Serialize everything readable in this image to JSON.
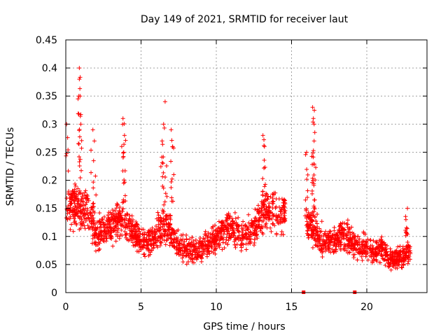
{
  "chart_data": {
    "type": "scatter",
    "title": "Day 149 of 2021, SRMTID for receiver laut",
    "xlabel": "GPS time / hours",
    "ylabel": "SRMTID / TECUs",
    "xlim": [
      0,
      24
    ],
    "ylim": [
      0,
      0.45
    ],
    "xticks": [
      0,
      5,
      10,
      15,
      20
    ],
    "xtick_labels": [
      "0",
      "5",
      "10",
      "15",
      "20"
    ],
    "yticks": [
      0,
      0.05,
      0.1,
      0.15,
      0.2,
      0.25,
      0.3,
      0.35,
      0.4,
      0.45
    ],
    "ytick_labels": [
      "0",
      "0.05",
      "0.1",
      "0.15",
      "0.2",
      "0.25",
      "0.3",
      "0.35",
      "0.4",
      "0.45"
    ],
    "grid": true,
    "marker": "+",
    "series_color": "#ff0000",
    "trend": [
      {
        "x": 0.0,
        "y": 0.15
      },
      {
        "x": 0.5,
        "y": 0.16
      },
      {
        "x": 1.0,
        "y": 0.14
      },
      {
        "x": 1.5,
        "y": 0.15
      },
      {
        "x": 2.0,
        "y": 0.1
      },
      {
        "x": 2.5,
        "y": 0.11
      },
      {
        "x": 3.0,
        "y": 0.12
      },
      {
        "x": 3.5,
        "y": 0.13
      },
      {
        "x": 4.0,
        "y": 0.12
      },
      {
        "x": 4.5,
        "y": 0.11
      },
      {
        "x": 5.0,
        "y": 0.09
      },
      {
        "x": 5.5,
        "y": 0.09
      },
      {
        "x": 6.0,
        "y": 0.1
      },
      {
        "x": 6.5,
        "y": 0.12
      },
      {
        "x": 7.0,
        "y": 0.11
      },
      {
        "x": 7.5,
        "y": 0.08
      },
      {
        "x": 8.0,
        "y": 0.08
      },
      {
        "x": 8.5,
        "y": 0.075
      },
      {
        "x": 9.0,
        "y": 0.08
      },
      {
        "x": 9.5,
        "y": 0.09
      },
      {
        "x": 10.0,
        "y": 0.1
      },
      {
        "x": 10.5,
        "y": 0.11
      },
      {
        "x": 11.0,
        "y": 0.12
      },
      {
        "x": 11.5,
        "y": 0.1
      },
      {
        "x": 12.0,
        "y": 0.1
      },
      {
        "x": 12.5,
        "y": 0.11
      },
      {
        "x": 13.0,
        "y": 0.14
      },
      {
        "x": 13.5,
        "y": 0.15
      },
      {
        "x": 14.0,
        "y": 0.14
      },
      {
        "x": 14.6,
        "y": 0.14
      },
      {
        "x": 15.9,
        "y": 0.14
      },
      {
        "x": 16.3,
        "y": 0.12
      },
      {
        "x": 17.0,
        "y": 0.09
      },
      {
        "x": 17.5,
        "y": 0.09
      },
      {
        "x": 18.0,
        "y": 0.1
      },
      {
        "x": 18.5,
        "y": 0.1
      },
      {
        "x": 19.0,
        "y": 0.09
      },
      {
        "x": 19.5,
        "y": 0.08
      },
      {
        "x": 20.0,
        "y": 0.08
      },
      {
        "x": 20.5,
        "y": 0.07
      },
      {
        "x": 21.0,
        "y": 0.08
      },
      {
        "x": 21.5,
        "y": 0.06
      },
      {
        "x": 22.0,
        "y": 0.06
      },
      {
        "x": 22.5,
        "y": 0.07
      },
      {
        "x": 22.9,
        "y": 0.07
      }
    ],
    "gaps": [
      [
        14.6,
        15.9
      ]
    ],
    "peaks": [
      {
        "x": 0.05,
        "y": 0.3
      },
      {
        "x": 0.9,
        "y": 0.4
      },
      {
        "x": 0.9,
        "y": 0.38
      },
      {
        "x": 0.95,
        "y": 0.35
      },
      {
        "x": 1.0,
        "y": 0.3
      },
      {
        "x": 1.8,
        "y": 0.29
      },
      {
        "x": 1.9,
        "y": 0.27
      },
      {
        "x": 3.8,
        "y": 0.31
      },
      {
        "x": 3.9,
        "y": 0.28
      },
      {
        "x": 3.85,
        "y": 0.25
      },
      {
        "x": 6.6,
        "y": 0.34
      },
      {
        "x": 6.5,
        "y": 0.3
      },
      {
        "x": 6.4,
        "y": 0.27
      },
      {
        "x": 7.0,
        "y": 0.29
      },
      {
        "x": 7.1,
        "y": 0.26
      },
      {
        "x": 13.1,
        "y": 0.28
      },
      {
        "x": 13.2,
        "y": 0.26
      },
      {
        "x": 16.4,
        "y": 0.33
      },
      {
        "x": 16.45,
        "y": 0.31
      },
      {
        "x": 16.5,
        "y": 0.3
      },
      {
        "x": 16.5,
        "y": 0.27
      },
      {
        "x": 16.0,
        "y": 0.25
      },
      {
        "x": 22.7,
        "y": 0.15
      },
      {
        "x": 22.6,
        "y": 0.13
      }
    ],
    "zero_markers": [
      {
        "x": 15.8,
        "y": 0.0
      },
      {
        "x": 19.2,
        "y": 0.0
      }
    ]
  }
}
